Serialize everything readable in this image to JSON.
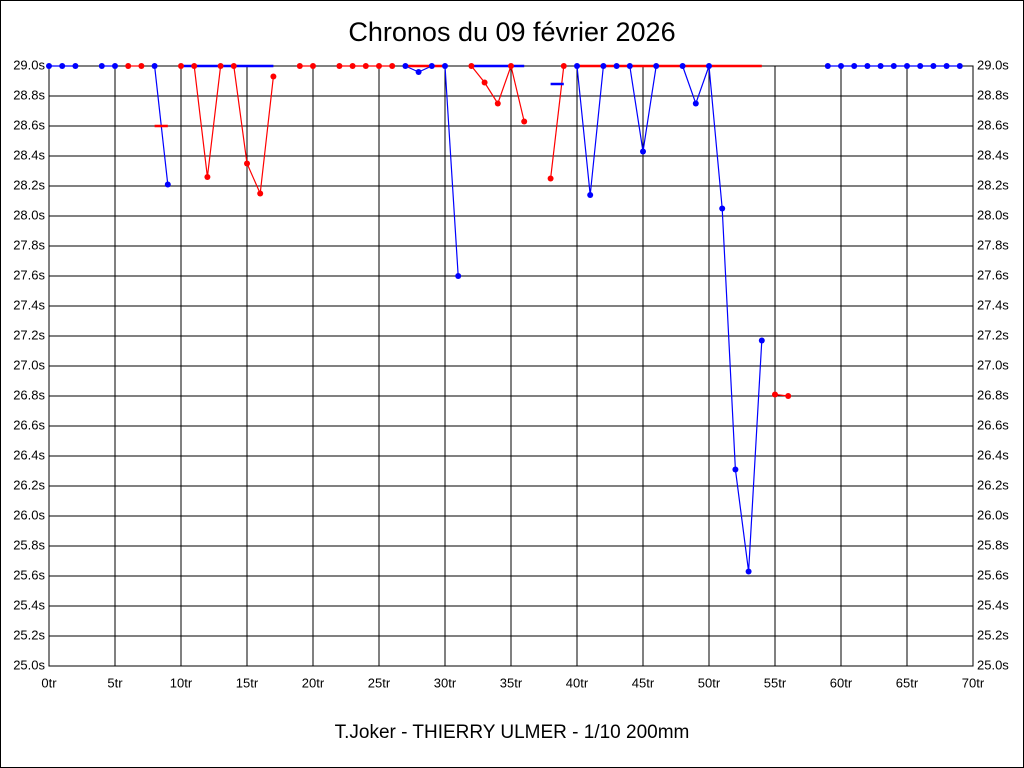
{
  "chart_data": {
    "type": "line",
    "title": "Chronos du 09 février 2026",
    "subtitle": "T.Joker - THIERRY ULMER - 1/10 200mm",
    "x": [
      0,
      1,
      2,
      3,
      4,
      5,
      6,
      7,
      8,
      9,
      10,
      11,
      12,
      13,
      14,
      15,
      16,
      17,
      18,
      19,
      20,
      21,
      22,
      23,
      24,
      25,
      26,
      27,
      28,
      29,
      30,
      31,
      32,
      33,
      34,
      35,
      36,
      37,
      38,
      39,
      40,
      41,
      42,
      43,
      44,
      45,
      46,
      47,
      48,
      49,
      50,
      51,
      52,
      53,
      54,
      55,
      56,
      57,
      58,
      59,
      60,
      61,
      62,
      63,
      64,
      65,
      66,
      67,
      68,
      69
    ],
    "series": [
      {
        "color": "#0000ff",
        "values": [
          29,
          29,
          29,
          null,
          29,
          29,
          null,
          null,
          29,
          28.21,
          null,
          null,
          null,
          null,
          null,
          null,
          null,
          null,
          null,
          null,
          null,
          null,
          null,
          null,
          null,
          null,
          null,
          29,
          28.96,
          29,
          29,
          27.6,
          null,
          null,
          null,
          null,
          null,
          null,
          null,
          null,
          29,
          28.14,
          29,
          29,
          29,
          28.43,
          29,
          null,
          29,
          28.75,
          29,
          28.05,
          26.31,
          25.63,
          27.17,
          null,
          null,
          null,
          null,
          29,
          29,
          29,
          29,
          29,
          29,
          29,
          29,
          29,
          29,
          29
        ]
      },
      {
        "color": "#ff0000",
        "values": [
          null,
          null,
          null,
          null,
          null,
          null,
          29,
          29,
          null,
          null,
          29,
          29,
          28.26,
          29,
          29,
          28.35,
          28.15,
          28.93,
          null,
          29,
          29,
          null,
          29,
          29,
          29,
          29,
          29,
          null,
          null,
          null,
          null,
          null,
          29,
          28.89,
          28.75,
          29,
          28.63,
          null,
          28.25,
          29,
          null,
          null,
          null,
          null,
          null,
          null,
          null,
          null,
          null,
          null,
          null,
          null,
          null,
          null,
          null,
          26.81,
          26.8,
          null,
          null,
          null,
          null,
          null,
          null,
          null,
          null,
          null,
          null,
          null,
          null,
          null
        ]
      }
    ],
    "segments": [
      {
        "color": "#ff0000",
        "x": [
          8,
          9
        ],
        "y": 28.6
      },
      {
        "color": "#0000ff",
        "x": [
          38,
          39
        ],
        "y": 28.88
      },
      {
        "color": "#0000ff",
        "x": [
          10,
          17
        ],
        "y": 29
      },
      {
        "color": "#ff0000",
        "x": [
          27,
          30
        ],
        "y": 29
      },
      {
        "color": "#0000ff",
        "x": [
          32,
          36
        ],
        "y": 29
      },
      {
        "color": "#ff0000",
        "x": [
          40,
          54
        ],
        "y": 29
      }
    ],
    "xlim": [
      0,
      70
    ],
    "xticks": [
      {
        "value": 0,
        "label": "0tr"
      },
      {
        "value": 5,
        "label": "5tr"
      },
      {
        "value": 10,
        "label": "10tr"
      },
      {
        "value": 15,
        "label": "15tr"
      },
      {
        "value": 20,
        "label": "20tr"
      },
      {
        "value": 25,
        "label": "25tr"
      },
      {
        "value": 30,
        "label": "30tr"
      },
      {
        "value": 35,
        "label": "35tr"
      },
      {
        "value": 40,
        "label": "40tr"
      },
      {
        "value": 45,
        "label": "45tr"
      },
      {
        "value": 50,
        "label": "50tr"
      },
      {
        "value": 55,
        "label": "55tr"
      },
      {
        "value": 60,
        "label": "60tr"
      },
      {
        "value": 65,
        "label": "65tr"
      },
      {
        "value": 70,
        "label": "70tr"
      }
    ],
    "ylim": [
      25,
      29
    ],
    "yticks": [
      {
        "value": 25,
        "label": "25.0s"
      },
      {
        "value": 25.2,
        "label": "25.2s"
      },
      {
        "value": 25.4,
        "label": "25.4s"
      },
      {
        "value": 25.6,
        "label": "25.6s"
      },
      {
        "value": 25.8,
        "label": "25.8s"
      },
      {
        "value": 26,
        "label": "26.0s"
      },
      {
        "value": 26.2,
        "label": "26.2s"
      },
      {
        "value": 26.4,
        "label": "26.4s"
      },
      {
        "value": 26.6,
        "label": "26.6s"
      },
      {
        "value": 26.8,
        "label": "26.8s"
      },
      {
        "value": 27,
        "label": "27.0s"
      },
      {
        "value": 27.2,
        "label": "27.2s"
      },
      {
        "value": 27.4,
        "label": "27.4s"
      },
      {
        "value": 27.6,
        "label": "27.6s"
      },
      {
        "value": 27.8,
        "label": "27.8s"
      },
      {
        "value": 28,
        "label": "28.0s"
      },
      {
        "value": 28.2,
        "label": "28.2s"
      },
      {
        "value": 28.4,
        "label": "28.4s"
      },
      {
        "value": 28.6,
        "label": "28.6s"
      },
      {
        "value": 28.8,
        "label": "28.8s"
      },
      {
        "value": 29,
        "label": "29.0s"
      }
    ],
    "grid": true
  }
}
